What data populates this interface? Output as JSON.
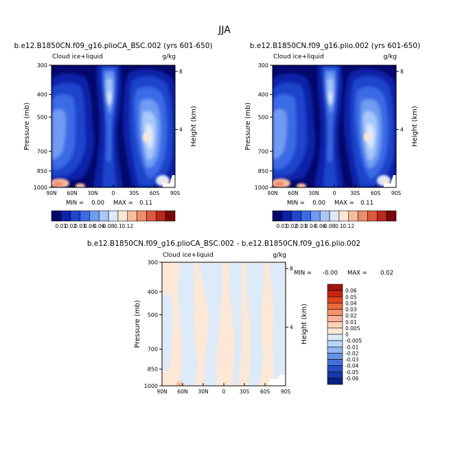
{
  "season": "JJA",
  "chart_data": [
    {
      "type": "heatmap",
      "title": "b.e12.B1850CN.f09_g16.plioCA_BSC.002 (yrs 601-650)",
      "variable": "Cloud ice+liquid",
      "units": "g/kg",
      "xlabel": "",
      "ylabel": "Pressure (mb)",
      "right_label": "Height (km)",
      "x_ticks": [
        "90N",
        "60N",
        "30N",
        "0",
        "30S",
        "60S",
        "90S"
      ],
      "y_ticks": [
        "300",
        "400",
        "500",
        "700",
        "850",
        "1000"
      ],
      "right_ticks": [
        "8",
        "4"
      ],
      "stats": {
        "min_label": "MIN =",
        "min": "0.00",
        "max_label": "MAX =",
        "max": "0.11"
      },
      "colorbar_labels": [
        "0.01",
        "0.02",
        "0.03",
        "0.04",
        "0.06",
        "0.08",
        "0.1",
        "0.12"
      ],
      "colorbar_colors": [
        "#03086c",
        "#0a23a8",
        "#1e45cc",
        "#3a6ae6",
        "#6f9bf2",
        "#a8c8fb",
        "#dde9fd",
        "#fde6d4",
        "#f8bd9d",
        "#ef8c6b",
        "#dd5a40",
        "#b8281d",
        "#7a0707"
      ]
    },
    {
      "type": "heatmap",
      "title": "b.e12.B1850CN.f09_g16.plio.002 (yrs 601-650)",
      "variable": "Cloud ice+liquid",
      "units": "g/kg",
      "xlabel": "",
      "ylabel": "Pressure (mb)",
      "right_label": "Height (km)",
      "x_ticks": [
        "90N",
        "60N",
        "30N",
        "0",
        "30S",
        "60S",
        "90S"
      ],
      "y_ticks": [
        "300",
        "400",
        "500",
        "700",
        "850",
        "1000"
      ],
      "right_ticks": [
        "8",
        "4"
      ],
      "stats": {
        "min_label": "MIN =",
        "min": "0.00",
        "max_label": "MAX =",
        "max": "0.11"
      },
      "colorbar_labels": [
        "0.01",
        "0.02",
        "0.03",
        "0.04",
        "0.06",
        "0.08",
        "0.1",
        "0.12"
      ],
      "colorbar_colors": [
        "#03086c",
        "#0a23a8",
        "#1e45cc",
        "#3a6ae6",
        "#6f9bf2",
        "#a8c8fb",
        "#dde9fd",
        "#fde6d4",
        "#f8bd9d",
        "#ef8c6b",
        "#dd5a40",
        "#b8281d",
        "#7a0707"
      ]
    },
    {
      "type": "heatmap",
      "title": "b.e12.B1850CN.f09_g16.plioCA_BSC.002 - b.e12.B1850CN.f09_g16.plio.002",
      "variable": "Cloud ice+liquid",
      "units": "g/kg",
      "xlabel": "",
      "ylabel": "Pressure (mb)",
      "right_label": "Height (km)",
      "x_ticks": [
        "90N",
        "60N",
        "30N",
        "0",
        "30S",
        "60S",
        "90S"
      ],
      "y_ticks": [
        "300",
        "400",
        "500",
        "700",
        "850",
        "1000"
      ],
      "right_ticks": [
        "8",
        "4"
      ],
      "stats": {
        "min_label": "MIN =",
        "min": "-0.00",
        "max_label": "MAX =",
        "max": "0.02"
      },
      "colorbar_labels": [
        "0.06",
        "0.05",
        "0.04",
        "0.03",
        "0.02",
        "0.01",
        "0.005",
        "0",
        "-0.005",
        "-0.01",
        "-0.02",
        "-0.03",
        "-0.04",
        "-0.05",
        "-0.06"
      ],
      "colorbar_colors": [
        "#a3150e",
        "#c9240f",
        "#e0431c",
        "#ea6a3c",
        "#f2916a",
        "#f7b395",
        "#fbd2bd",
        "#fde8d6",
        "#ddeafa",
        "#bcd5f6",
        "#93b4ef",
        "#6a91e6",
        "#4470dc",
        "#2650c8",
        "#1737a8",
        "#0b1f82"
      ]
    }
  ]
}
